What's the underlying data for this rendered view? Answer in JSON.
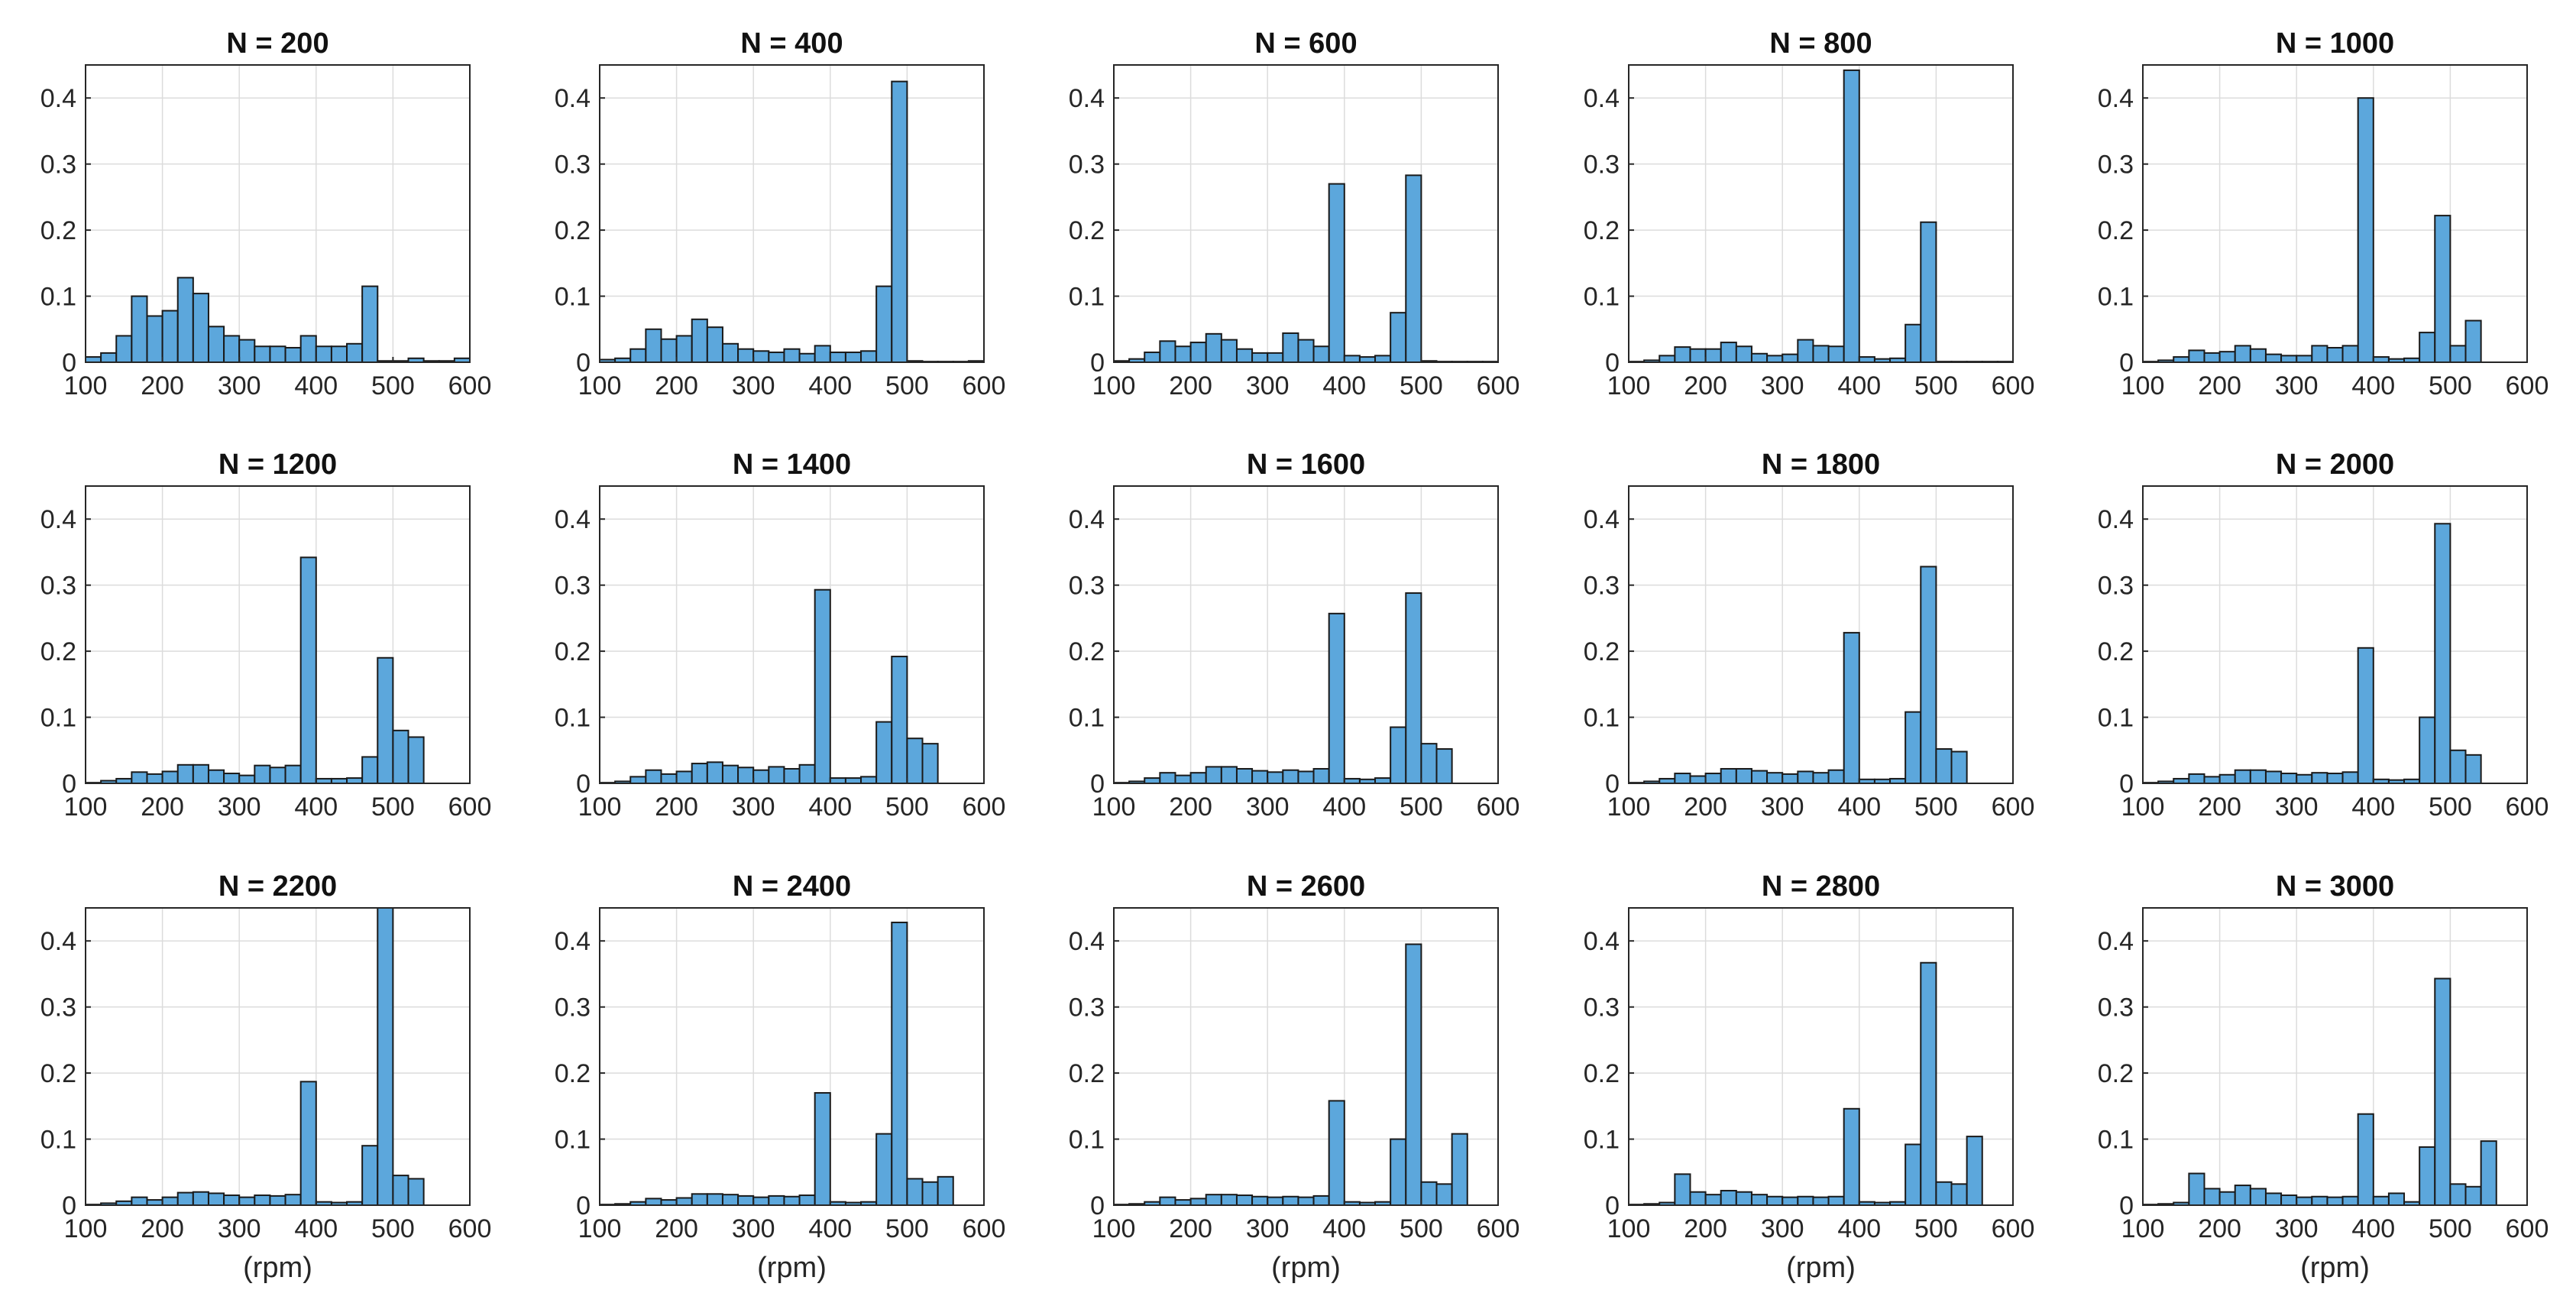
{
  "figure": {
    "background": "#ffffff",
    "bar_color": "#5ca7dc",
    "edge_color": "#1a1a1a"
  },
  "chart_data": [
    {
      "type": "bar",
      "title": "N = 200",
      "xlabel": "",
      "ylabel": "",
      "xlim": [
        100,
        600
      ],
      "ylim": [
        0,
        0.45
      ],
      "xticks": [
        100,
        200,
        300,
        400,
        500,
        600
      ],
      "yticks": [
        0,
        0.1,
        0.2,
        0.3,
        0.4
      ],
      "ytick_labels": [
        "0",
        "0.1",
        "0.2",
        "0.3",
        "0.4"
      ],
      "bin_width": 20,
      "bin_start": 110,
      "values": [
        0.008,
        0.014,
        0.04,
        0.1,
        0.07,
        0.078,
        0.128,
        0.104,
        0.054,
        0.04,
        0.034,
        0.024,
        0.024,
        0.022,
        0.04,
        0.024,
        0.024,
        0.028,
        0.115,
        0.002,
        0.002,
        0.006,
        0.002,
        0.002,
        0.006
      ]
    },
    {
      "type": "bar",
      "title": "N = 400",
      "xlabel": "",
      "ylabel": "",
      "xlim": [
        100,
        600
      ],
      "ylim": [
        0,
        0.45
      ],
      "xticks": [
        100,
        200,
        300,
        400,
        500,
        600
      ],
      "yticks": [
        0,
        0.1,
        0.2,
        0.3,
        0.4
      ],
      "ytick_labels": [
        "0",
        "0.1",
        "0.2",
        "0.3",
        "0.4"
      ],
      "bin_width": 20,
      "bin_start": 110,
      "values": [
        0.004,
        0.006,
        0.02,
        0.05,
        0.035,
        0.04,
        0.065,
        0.053,
        0.028,
        0.02,
        0.017,
        0.015,
        0.02,
        0.013,
        0.025,
        0.015,
        0.015,
        0.017,
        0.115,
        0.425,
        0.002,
        0.001,
        0.001,
        0.001,
        0.002
      ]
    },
    {
      "type": "bar",
      "title": "N = 600",
      "xlabel": "",
      "ylabel": "",
      "xlim": [
        100,
        600
      ],
      "ylim": [
        0,
        0.45
      ],
      "xticks": [
        100,
        200,
        300,
        400,
        500,
        600
      ],
      "yticks": [
        0,
        0.1,
        0.2,
        0.3,
        0.4
      ],
      "ytick_labels": [
        "0",
        "0.1",
        "0.2",
        "0.3",
        "0.4"
      ],
      "bin_width": 20,
      "bin_start": 110,
      "values": [
        0.002,
        0.005,
        0.015,
        0.032,
        0.024,
        0.03,
        0.043,
        0.034,
        0.02,
        0.014,
        0.014,
        0.044,
        0.034,
        0.024,
        0.27,
        0.01,
        0.008,
        0.01,
        0.075,
        0.283,
        0.002,
        0.001,
        0.001,
        0.001,
        0.001
      ]
    },
    {
      "type": "bar",
      "title": "N = 800",
      "xlabel": "",
      "ylabel": "",
      "xlim": [
        100,
        600
      ],
      "ylim": [
        0,
        0.45
      ],
      "xticks": [
        100,
        200,
        300,
        400,
        500,
        600
      ],
      "yticks": [
        0,
        0.1,
        0.2,
        0.3,
        0.4
      ],
      "ytick_labels": [
        "0",
        "0.1",
        "0.2",
        "0.3",
        "0.4"
      ],
      "bin_width": 20,
      "bin_start": 110,
      "values": [
        0.001,
        0.003,
        0.01,
        0.023,
        0.02,
        0.02,
        0.03,
        0.024,
        0.013,
        0.01,
        0.012,
        0.034,
        0.025,
        0.024,
        0.442,
        0.008,
        0.005,
        0.006,
        0.057,
        0.212,
        0.001,
        0.001,
        0.001,
        0.001,
        0.001
      ]
    },
    {
      "type": "bar",
      "title": "N = 1000",
      "xlabel": "",
      "ylabel": "",
      "xlim": [
        100,
        600
      ],
      "ylim": [
        0,
        0.45
      ],
      "xticks": [
        100,
        200,
        300,
        400,
        500,
        600
      ],
      "yticks": [
        0,
        0.1,
        0.2,
        0.3,
        0.4
      ],
      "ytick_labels": [
        "0",
        "0.1",
        "0.2",
        "0.3",
        "0.4"
      ],
      "bin_width": 20,
      "bin_start": 110,
      "values": [
        0.001,
        0.003,
        0.008,
        0.018,
        0.014,
        0.016,
        0.025,
        0.02,
        0.012,
        0.01,
        0.01,
        0.025,
        0.022,
        0.025,
        0.4,
        0.008,
        0.005,
        0.006,
        0.045,
        0.222,
        0.025,
        0.063,
        0,
        0,
        0
      ]
    },
    {
      "type": "bar",
      "title": "N = 1200",
      "xlabel": "",
      "ylabel": "",
      "xlim": [
        100,
        600
      ],
      "ylim": [
        0,
        0.45
      ],
      "xticks": [
        100,
        200,
        300,
        400,
        500,
        600
      ],
      "yticks": [
        0,
        0.1,
        0.2,
        0.3,
        0.4
      ],
      "ytick_labels": [
        "0",
        "0.1",
        "0.2",
        "0.3",
        "0.4"
      ],
      "bin_width": 20,
      "bin_start": 110,
      "values": [
        0.001,
        0.004,
        0.007,
        0.017,
        0.014,
        0.018,
        0.028,
        0.028,
        0.02,
        0.015,
        0.012,
        0.027,
        0.024,
        0.027,
        0.342,
        0.007,
        0.007,
        0.008,
        0.04,
        0.19,
        0.08,
        0.07,
        0,
        0,
        0
      ]
    },
    {
      "type": "bar",
      "title": "N = 1400",
      "xlabel": "",
      "ylabel": "",
      "xlim": [
        100,
        600
      ],
      "ylim": [
        0,
        0.45
      ],
      "xticks": [
        100,
        200,
        300,
        400,
        500,
        600
      ],
      "yticks": [
        0,
        0.1,
        0.2,
        0.3,
        0.4
      ],
      "ytick_labels": [
        "0",
        "0.1",
        "0.2",
        "0.3",
        "0.4"
      ],
      "bin_width": 20,
      "bin_start": 110,
      "values": [
        0.001,
        0.003,
        0.01,
        0.02,
        0.014,
        0.018,
        0.03,
        0.032,
        0.027,
        0.024,
        0.02,
        0.025,
        0.022,
        0.028,
        0.293,
        0.008,
        0.008,
        0.01,
        0.093,
        0.192,
        0.068,
        0.06,
        0,
        0,
        0
      ]
    },
    {
      "type": "bar",
      "title": "N = 1600",
      "xlabel": "",
      "ylabel": "",
      "xlim": [
        100,
        600
      ],
      "ylim": [
        0,
        0.45
      ],
      "xticks": [
        100,
        200,
        300,
        400,
        500,
        600
      ],
      "yticks": [
        0,
        0.1,
        0.2,
        0.3,
        0.4
      ],
      "ytick_labels": [
        "0",
        "0.1",
        "0.2",
        "0.3",
        "0.4"
      ],
      "bin_width": 20,
      "bin_start": 110,
      "values": [
        0.001,
        0.003,
        0.008,
        0.016,
        0.012,
        0.016,
        0.025,
        0.025,
        0.022,
        0.019,
        0.017,
        0.02,
        0.018,
        0.022,
        0.257,
        0.007,
        0.006,
        0.008,
        0.085,
        0.288,
        0.06,
        0.052,
        0,
        0,
        0
      ]
    },
    {
      "type": "bar",
      "title": "N = 1800",
      "xlabel": "",
      "ylabel": "",
      "xlim": [
        100,
        600
      ],
      "ylim": [
        0,
        0.45
      ],
      "xticks": [
        100,
        200,
        300,
        400,
        500,
        600
      ],
      "yticks": [
        0,
        0.1,
        0.2,
        0.3,
        0.4
      ],
      "ytick_labels": [
        "0",
        "0.1",
        "0.2",
        "0.3",
        "0.4"
      ],
      "bin_width": 20,
      "bin_start": 110,
      "values": [
        0.001,
        0.003,
        0.007,
        0.015,
        0.011,
        0.015,
        0.022,
        0.022,
        0.019,
        0.016,
        0.014,
        0.018,
        0.016,
        0.02,
        0.228,
        0.006,
        0.006,
        0.007,
        0.108,
        0.328,
        0.052,
        0.048,
        0,
        0,
        0
      ]
    },
    {
      "type": "bar",
      "title": "N = 2000",
      "xlabel": "",
      "ylabel": "",
      "xlim": [
        100,
        600
      ],
      "ylim": [
        0,
        0.45
      ],
      "xticks": [
        100,
        200,
        300,
        400,
        500,
        600
      ],
      "yticks": [
        0,
        0.1,
        0.2,
        0.3,
        0.4
      ],
      "ytick_labels": [
        "0",
        "0.1",
        "0.2",
        "0.3",
        "0.4"
      ],
      "bin_width": 20,
      "bin_start": 110,
      "values": [
        0.001,
        0.003,
        0.007,
        0.014,
        0.01,
        0.013,
        0.02,
        0.02,
        0.018,
        0.015,
        0.013,
        0.016,
        0.015,
        0.017,
        0.205,
        0.006,
        0.005,
        0.006,
        0.1,
        0.393,
        0.05,
        0.043,
        0,
        0,
        0
      ]
    },
    {
      "type": "bar",
      "title": "N = 2200",
      "xlabel": "(rpm)",
      "ylabel": "",
      "xlim": [
        100,
        600
      ],
      "ylim": [
        0,
        0.45
      ],
      "xticks": [
        100,
        200,
        300,
        400,
        500,
        600
      ],
      "yticks": [
        0,
        0.1,
        0.2,
        0.3,
        0.4
      ],
      "ytick_labels": [
        "0",
        "0.1",
        "0.2",
        "0.3",
        "0.4"
      ],
      "bin_width": 20,
      "bin_start": 110,
      "values": [
        0.001,
        0.003,
        0.006,
        0.012,
        0.008,
        0.012,
        0.019,
        0.02,
        0.018,
        0.015,
        0.012,
        0.015,
        0.014,
        0.016,
        0.187,
        0.005,
        0.004,
        0.005,
        0.09,
        0.45,
        0.045,
        0.04,
        0,
        0,
        0
      ]
    },
    {
      "type": "bar",
      "title": "N = 2400",
      "xlabel": "(rpm)",
      "ylabel": "",
      "xlim": [
        100,
        600
      ],
      "ylim": [
        0,
        0.45
      ],
      "xticks": [
        100,
        200,
        300,
        400,
        500,
        600
      ],
      "yticks": [
        0,
        0.1,
        0.2,
        0.3,
        0.4
      ],
      "ytick_labels": [
        "0",
        "0.1",
        "0.2",
        "0.3",
        "0.4"
      ],
      "bin_width": 20,
      "bin_start": 110,
      "values": [
        0.001,
        0.002,
        0.005,
        0.01,
        0.008,
        0.011,
        0.017,
        0.017,
        0.016,
        0.014,
        0.012,
        0.014,
        0.013,
        0.015,
        0.17,
        0.005,
        0.004,
        0.005,
        0.108,
        0.428,
        0.04,
        0.035,
        0.043,
        0,
        0
      ]
    },
    {
      "type": "bar",
      "title": "N = 2600",
      "xlabel": "(rpm)",
      "ylabel": "",
      "xlim": [
        100,
        600
      ],
      "ylim": [
        0,
        0.45
      ],
      "xticks": [
        100,
        200,
        300,
        400,
        500,
        600
      ],
      "yticks": [
        0,
        0.1,
        0.2,
        0.3,
        0.4
      ],
      "ytick_labels": [
        "0",
        "0.1",
        "0.2",
        "0.3",
        "0.4"
      ],
      "bin_width": 20,
      "bin_start": 110,
      "values": [
        0.001,
        0.002,
        0.005,
        0.012,
        0.008,
        0.01,
        0.016,
        0.016,
        0.015,
        0.013,
        0.012,
        0.013,
        0.012,
        0.014,
        0.158,
        0.005,
        0.004,
        0.005,
        0.1,
        0.395,
        0.035,
        0.032,
        0.108,
        0,
        0
      ]
    },
    {
      "type": "bar",
      "title": "N = 2800",
      "xlabel": "(rpm)",
      "ylabel": "",
      "xlim": [
        100,
        600
      ],
      "ylim": [
        0,
        0.45
      ],
      "xticks": [
        100,
        200,
        300,
        400,
        500,
        600
      ],
      "yticks": [
        0,
        0.1,
        0.2,
        0.3,
        0.4
      ],
      "ytick_labels": [
        "0",
        "0.1",
        "0.2",
        "0.3",
        "0.4"
      ],
      "bin_width": 20,
      "bin_start": 110,
      "values": [
        0.001,
        0.002,
        0.004,
        0.047,
        0.02,
        0.016,
        0.022,
        0.02,
        0.016,
        0.013,
        0.012,
        0.013,
        0.012,
        0.013,
        0.146,
        0.005,
        0.004,
        0.005,
        0.092,
        0.367,
        0.035,
        0.032,
        0.104,
        0,
        0
      ]
    },
    {
      "type": "bar",
      "title": "N = 3000",
      "xlabel": "(rpm)",
      "ylabel": "",
      "xlim": [
        100,
        600
      ],
      "ylim": [
        0,
        0.45
      ],
      "xticks": [
        100,
        200,
        300,
        400,
        500,
        600
      ],
      "yticks": [
        0,
        0.1,
        0.2,
        0.3,
        0.4
      ],
      "ytick_labels": [
        "0",
        "0.1",
        "0.2",
        "0.3",
        "0.4"
      ],
      "bin_width": 20,
      "bin_start": 110,
      "values": [
        0.001,
        0.002,
        0.004,
        0.048,
        0.025,
        0.02,
        0.03,
        0.025,
        0.018,
        0.015,
        0.012,
        0.013,
        0.012,
        0.013,
        0.138,
        0.013,
        0.018,
        0.005,
        0.088,
        0.343,
        0.032,
        0.028,
        0.097,
        0,
        0
      ]
    }
  ]
}
